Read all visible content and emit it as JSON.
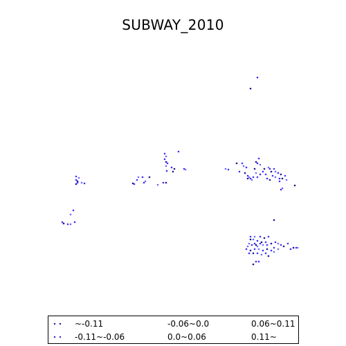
{
  "title": "SUBWAY_2010",
  "colors": {
    "point": "#3a2cf0",
    "point_dark": "#1c1490",
    "point_mid": "#3f33ff",
    "point_light": "#6f68ff"
  },
  "legend": {
    "items": [
      {
        "label": "~-0.11",
        "color": "#1c1490"
      },
      {
        "label": "-0.11~-0.06",
        "color": "#2f22c8"
      },
      {
        "label": "-0.06~0.0",
        "color": "#3a2cf0"
      },
      {
        "label": "0.0~0.06",
        "color": "#4a3cff"
      },
      {
        "label": "0.06~0.11",
        "color": "#5a50ff"
      },
      {
        "label": "0.11~",
        "color": "#6f68ff"
      }
    ]
  }
}
